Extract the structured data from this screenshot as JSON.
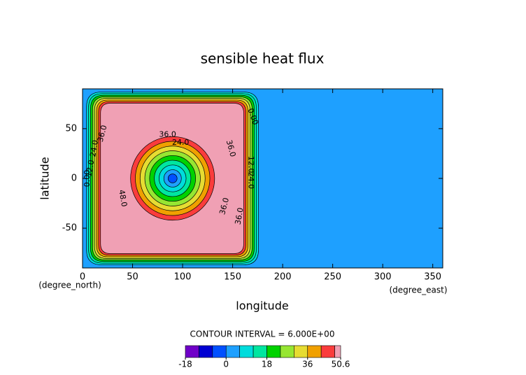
{
  "chart_data": {
    "type": "contour",
    "title": "sensible heat flux",
    "x_label": "longitude",
    "y_label": "latitude",
    "x_unit": "(degree_east)",
    "y_unit": "(degree_north)",
    "xlim": [
      0,
      360
    ],
    "ylim": [
      -90,
      90
    ],
    "xticks": [
      0,
      50,
      100,
      150,
      200,
      250,
      300,
      350
    ],
    "yticks": [
      -50,
      0,
      50
    ],
    "contour_interval": "CONTOUR INTERVAL = 6.000E+00",
    "contour_labels": [
      {
        "value": 0,
        "label": "0.00"
      },
      {
        "value": 12,
        "label": "12.0"
      },
      {
        "value": 24,
        "label": "24.0"
      },
      {
        "value": 36,
        "label": "36.0"
      },
      {
        "value": 48,
        "label": "48.0"
      }
    ],
    "levels": [
      -18,
      -12,
      -6,
      0,
      6,
      12,
      18,
      24,
      30,
      36,
      42,
      48,
      50.6
    ],
    "colors": [
      "#7000c8",
      "#0000d2",
      "#0050ff",
      "#1ea0ff",
      "#00dcdc",
      "#00e6a0",
      "#00d200",
      "#96e632",
      "#e6dc32",
      "#f0a000",
      "#fa3c3c",
      "#f0a0b4"
    ],
    "colorbar_ticks": [
      -18,
      0,
      18,
      36,
      50.6
    ]
  }
}
